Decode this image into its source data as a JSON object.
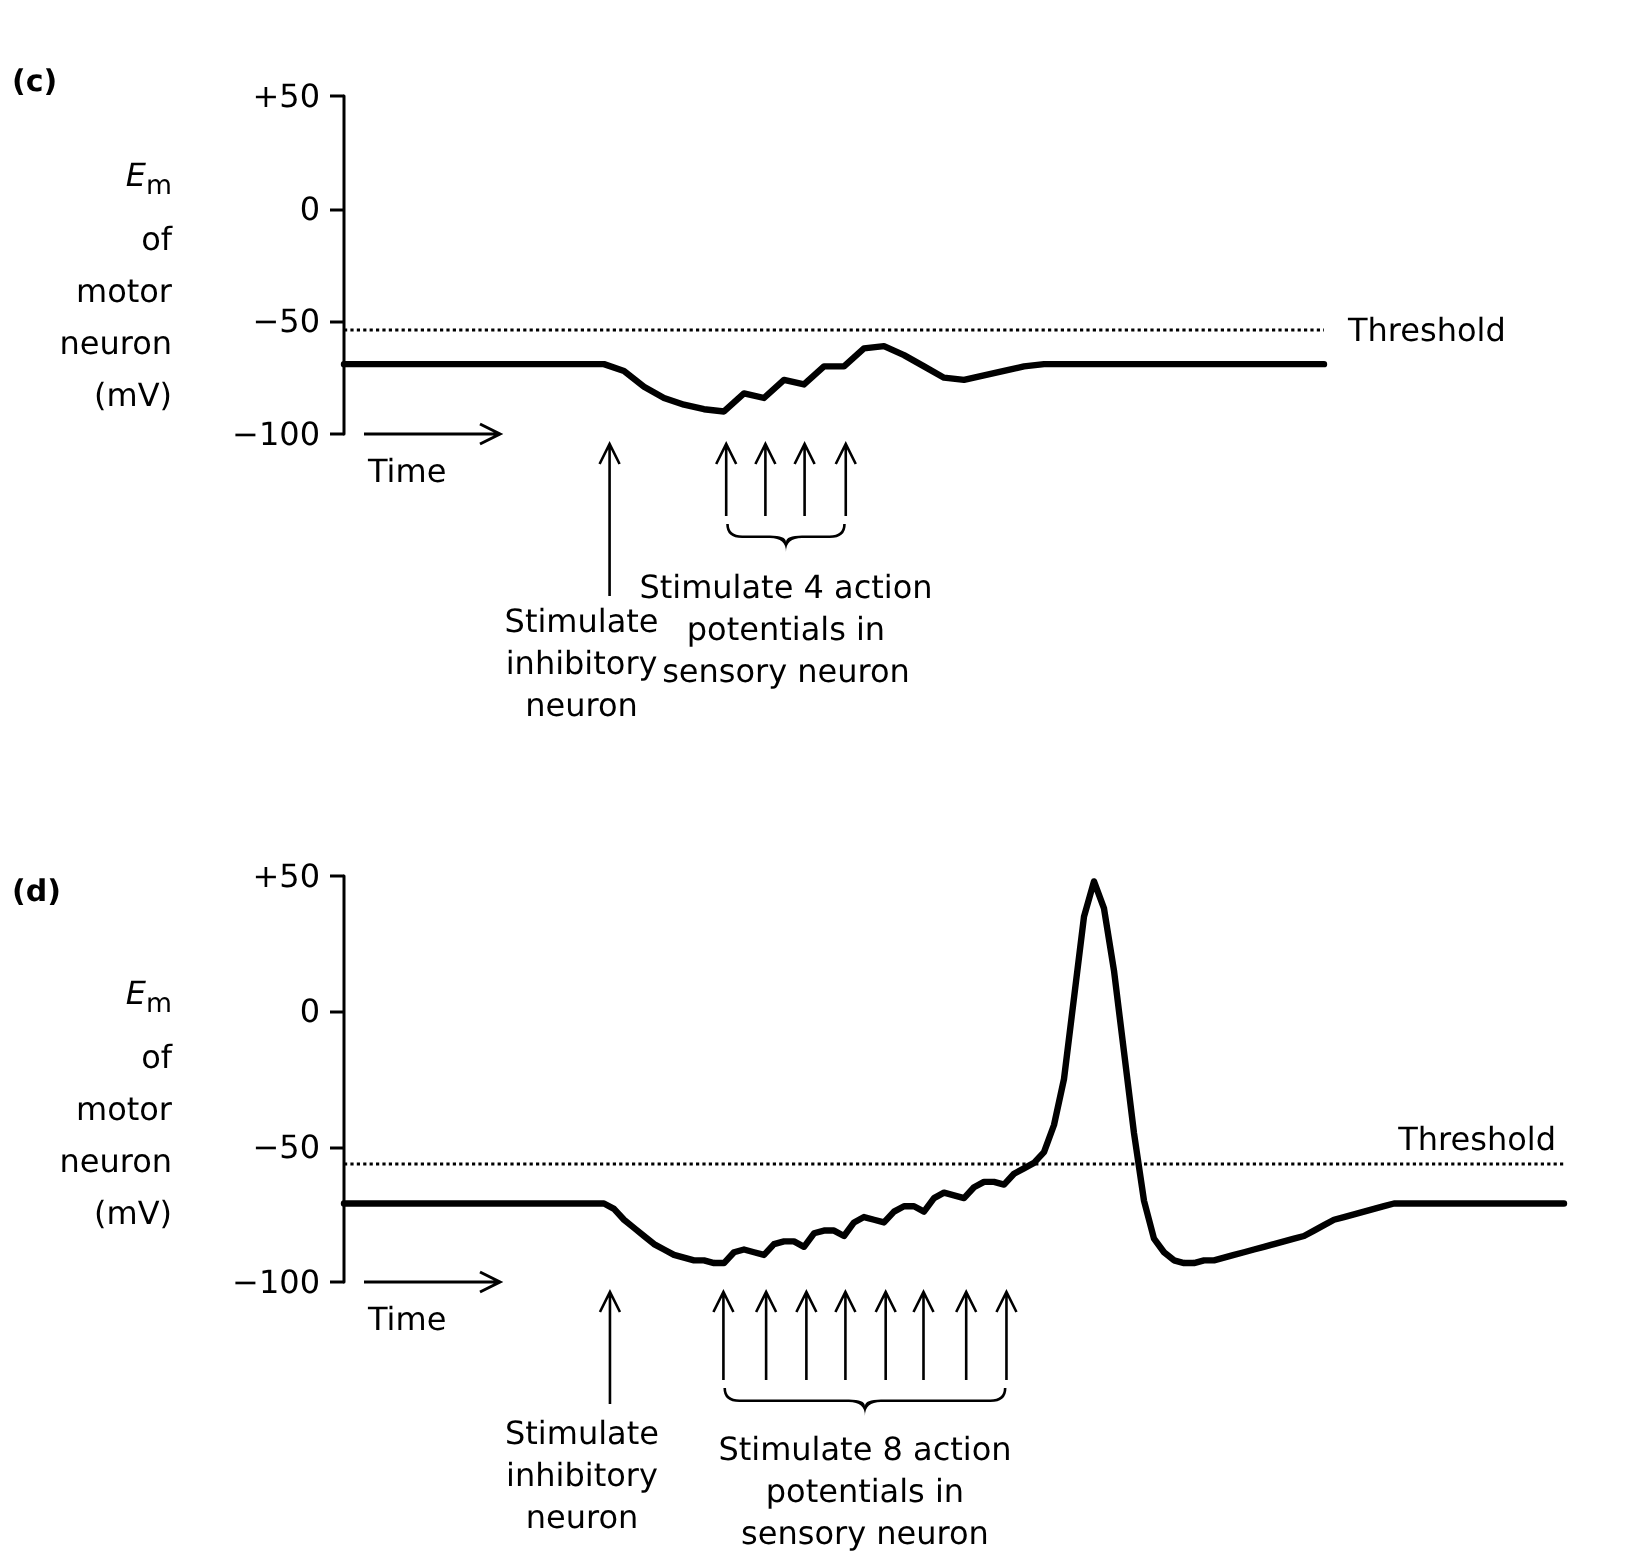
{
  "chart_data": [
    {
      "type": "line",
      "ylabel": "E$_{m}$ of motor neuron (mV)",
      "annotations": [
        "(c)",
        "Time",
        "Stimulate inhibitory neuron",
        "Stimulate 4 action potentials in sensory neuron"
      ],
      "categories": [
        null,
        null,
        null,
        null,
        null,
        null,
        null,
        null,
        null,
        null,
        null,
        null,
        null,
        null,
        null,
        null,
        null,
        null,
        null,
        null,
        null,
        null,
        null,
        null,
        null,
        null,
        null,
        null,
        null,
        null,
        null,
        null,
        null,
        null,
        null,
        null,
        null,
        null,
        null,
        null,
        null,
        null,
        null,
        null,
        null,
        null,
        null,
        null,
        null,
        null
      ],
      "series": [
        {
          "color": "#000000",
          "values": [
            -69,
            -69,
            -69,
            -69,
            -69,
            -69,
            -69,
            -69,
            -69,
            -69,
            -69,
            -69,
            -69,
            -69,
            -72,
            -79,
            -84,
            -87,
            -89,
            -90,
            -82,
            -84,
            -76,
            -78,
            -70,
            -70,
            -62,
            -61,
            -65,
            -70,
            -75,
            -76,
            -74,
            -72,
            -70,
            -69,
            -69,
            -69,
            -69,
            -69,
            -69,
            -69,
            -69,
            -69,
            -69,
            -69,
            -69,
            -69,
            -69,
            -69
          ]
        }
      ],
      "ylim": [
        -100,
        50
      ],
      "yticks": [
        {
          "value": 50,
          "label": "+50"
        },
        0,
        {
          "value": -50,
          "label": "−50"
        },
        {
          "value": -100,
          "label": "−100"
        }
      ],
      "ref_lines": [
        {
          "axis": "y",
          "value": -54,
          "label": "Threshold",
          "color": "#000000",
          "line_style": "dotted"
        }
      ],
      "marker": "none",
      "line_style": "solid",
      "tick_labels": "y"
    },
    {
      "type": "line",
      "ylabel": "E$_{m}$ of motor neuron (mV)",
      "annotations": [
        "(d)",
        "Time",
        "Stimulate inhibitory neuron",
        "Stimulate 8 action potentials in sensory neuron"
      ],
      "categories": [
        null,
        null,
        null,
        null,
        null,
        null,
        null,
        null,
        null,
        null,
        null,
        null,
        null,
        null,
        null,
        null,
        null,
        null,
        null,
        null,
        null,
        null,
        null,
        null,
        null,
        null,
        null,
        null,
        null,
        null,
        null,
        null,
        null,
        null,
        null,
        null,
        null,
        null,
        null,
        null,
        null,
        null,
        null,
        null,
        null,
        null,
        null,
        null,
        null,
        null,
        null,
        null,
        null,
        null,
        null,
        null,
        null,
        null,
        null,
        null,
        null,
        null,
        null,
        null,
        null,
        null,
        null,
        null,
        null,
        null,
        null,
        null,
        null,
        null,
        null,
        null,
        null,
        null,
        null,
        null,
        null,
        null,
        null,
        null,
        null,
        null,
        null,
        null,
        null,
        null,
        null,
        null,
        null,
        null,
        null,
        null,
        null,
        null,
        null,
        null,
        null,
        null,
        null,
        null,
        null,
        null,
        null,
        null,
        null,
        null,
        null,
        null,
        null,
        null,
        null,
        null,
        null,
        null,
        null,
        null,
        null,
        null,
        null
      ],
      "series": [
        {
          "color": "#000000",
          "values": [
            -71,
            -71,
            -71,
            -71,
            -71,
            -71,
            -71,
            -71,
            -71,
            -71,
            -71,
            -71,
            -71,
            -71,
            -71,
            -71,
            -71,
            -71,
            -71,
            -71,
            -71,
            -71,
            -71,
            -71,
            -71,
            -71,
            -71,
            -73,
            -77,
            -80,
            -83,
            -86,
            -88,
            -90,
            -91,
            -92,
            -92,
            -93,
            -93,
            -89,
            -88,
            -89,
            -90,
            -86,
            -85,
            -85,
            -87,
            -82,
            -81,
            -81,
            -83,
            -78,
            -76,
            -77,
            -78,
            -74,
            -72,
            -72,
            -74,
            -69,
            -67,
            -68,
            -69,
            -65,
            -63,
            -63,
            -64,
            -60,
            -58,
            -56,
            -52,
            -42,
            -25,
            5,
            35,
            48,
            38,
            15,
            -15,
            -45,
            -70,
            -84,
            -89,
            -92,
            -93,
            -93,
            -92,
            -92,
            -91,
            -90,
            -89,
            -88,
            -87,
            -86,
            -85,
            -84,
            -83,
            -81,
            -79,
            -77,
            -76,
            -75,
            -74,
            -73,
            -72,
            -71,
            -71,
            -71,
            -71,
            -71,
            -71,
            -71,
            -71,
            -71,
            -71,
            -71,
            -71,
            -71,
            -71,
            -71,
            -71,
            -71,
            -71
          ]
        }
      ],
      "ylim": [
        -100,
        50
      ],
      "yticks": [
        {
          "value": 50,
          "label": "+50"
        },
        0,
        {
          "value": -50,
          "label": "−50"
        },
        {
          "value": -100,
          "label": "−100"
        }
      ],
      "ref_lines": [
        {
          "axis": "y",
          "value": -56,
          "label": "Threshold",
          "color": "#000000",
          "line_style": "dotted"
        }
      ],
      "marker": "none",
      "line_style": "solid",
      "tick_labels": "y"
    }
  ]
}
